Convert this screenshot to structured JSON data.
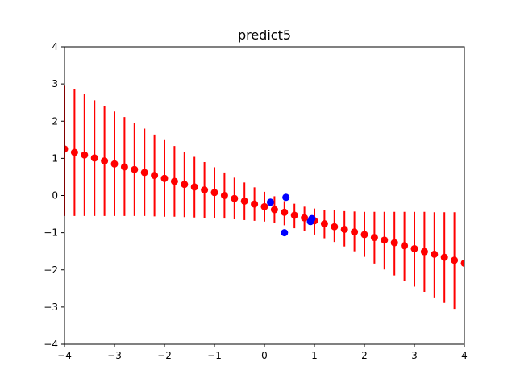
{
  "chart_data": {
    "type": "scatter",
    "title": "predict5",
    "xlabel": "",
    "ylabel": "",
    "xlim": [
      -4,
      4
    ],
    "ylim": [
      -4,
      4
    ],
    "xticks": [
      "-4",
      "-3",
      "-2",
      "-1",
      "0",
      "1",
      "2",
      "3",
      "4"
    ],
    "yticks": [
      "-4",
      "-3",
      "-2",
      "-1",
      "0",
      "1",
      "2",
      "3",
      "4"
    ],
    "grid": false,
    "colors": {
      "prediction": "#ff0000",
      "observed": "#0000ff",
      "axes": "#000000",
      "background": "#ffffff"
    },
    "prediction": {
      "x": [
        -4.0,
        -3.8,
        -3.6,
        -3.4,
        -3.2,
        -3.0,
        -2.8,
        -2.6,
        -2.4,
        -2.2,
        -2.0,
        -1.8,
        -1.6,
        -1.4,
        -1.2,
        -1.0,
        -0.8,
        -0.6,
        -0.4,
        -0.2,
        0.0,
        0.2,
        0.4,
        0.6,
        0.8,
        1.0,
        1.2,
        1.4,
        1.6,
        1.8,
        2.0,
        2.2,
        2.4,
        2.6,
        2.8,
        3.0,
        3.2,
        3.4,
        3.6,
        3.8,
        4.0
      ],
      "y": [
        1.25,
        1.16,
        1.09,
        1.01,
        0.93,
        0.85,
        0.77,
        0.7,
        0.62,
        0.54,
        0.46,
        0.38,
        0.3,
        0.23,
        0.15,
        0.08,
        0.0,
        -0.08,
        -0.15,
        -0.23,
        -0.3,
        -0.38,
        -0.45,
        -0.53,
        -0.6,
        -0.68,
        -0.76,
        -0.84,
        -0.91,
        -0.98,
        -1.05,
        -1.13,
        -1.2,
        -1.27,
        -1.35,
        -1.43,
        -1.51,
        -1.58,
        -1.66,
        -1.74,
        -1.82
      ],
      "lower": [
        -0.55,
        -0.55,
        -0.55,
        -0.55,
        -0.55,
        -0.55,
        -0.55,
        -0.55,
        -0.55,
        -0.56,
        -0.57,
        -0.57,
        -0.58,
        -0.59,
        -0.6,
        -0.61,
        -0.62,
        -0.64,
        -0.66,
        -0.68,
        -0.7,
        -0.74,
        -0.8,
        -0.88,
        -0.96,
        -1.05,
        -1.15,
        -1.25,
        -1.37,
        -1.5,
        -1.65,
        -1.83,
        -1.99,
        -2.15,
        -2.3,
        -2.45,
        -2.59,
        -2.74,
        -2.89,
        -3.05,
        -3.18
      ],
      "upper": [
        2.95,
        2.87,
        2.72,
        2.56,
        2.41,
        2.26,
        2.11,
        1.96,
        1.8,
        1.64,
        1.49,
        1.33,
        1.18,
        1.04,
        0.9,
        0.76,
        0.62,
        0.48,
        0.35,
        0.22,
        0.1,
        -0.02,
        -0.15,
        -0.22,
        -0.3,
        -0.35,
        -0.38,
        -0.4,
        -0.42,
        -0.43,
        -0.44,
        -0.44,
        -0.44,
        -0.44,
        -0.44,
        -0.44,
        -0.44,
        -0.45,
        -0.45,
        -0.45,
        -0.45
      ]
    },
    "observed": {
      "x": [
        0.12,
        0.43,
        0.4,
        0.92,
        0.95
      ],
      "y": [
        -0.18,
        -0.05,
        -1.0,
        -0.7,
        -0.62
      ]
    }
  }
}
